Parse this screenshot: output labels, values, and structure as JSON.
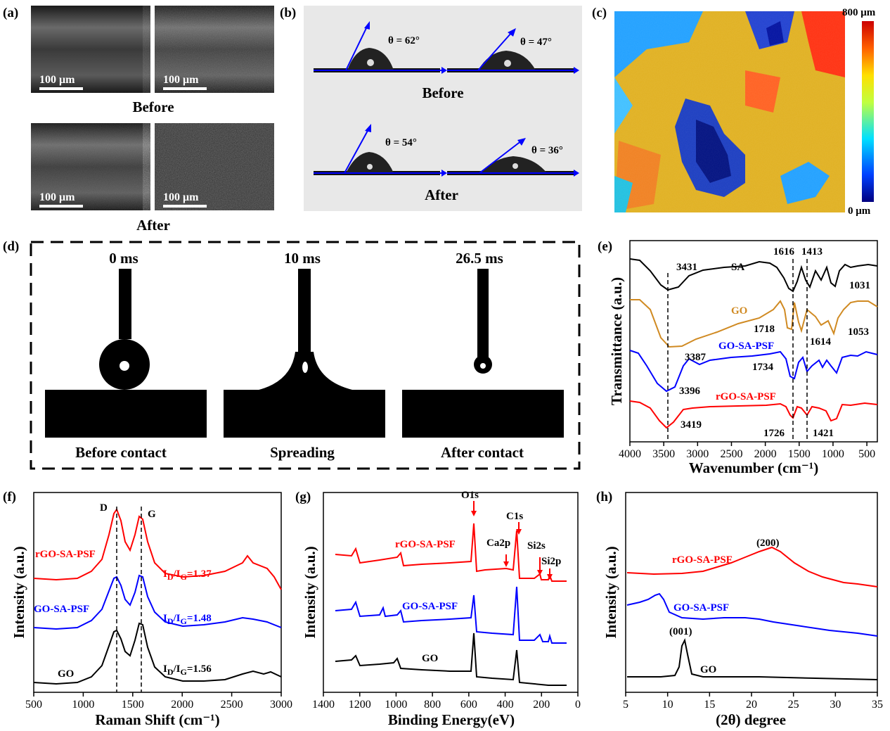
{
  "colors": {
    "red": "#ff0000",
    "blue": "#0000ff",
    "black": "#000000",
    "orange": "#d08a22",
    "bg_b": "#e8e8e8"
  },
  "panels": {
    "a": {
      "label": "(a)",
      "scale": "100 μm",
      "before": "Before",
      "after": "After"
    },
    "b": {
      "label": "(b)",
      "angles": [
        "θ = 62°",
        "θ = 47°",
        "θ = 54°",
        "θ = 36°"
      ],
      "before": "Before",
      "after": "After"
    },
    "c": {
      "label": "(c)",
      "cb_max": "800 μm",
      "cb_min": "0 μm"
    },
    "d": {
      "label": "(d)",
      "times": [
        "0 ms",
        "10 ms",
        "26.5 ms"
      ],
      "captions": [
        "Before contact",
        "Spreading",
        "After contact"
      ]
    }
  },
  "chart_data": [
    {
      "panel": "(e)",
      "type": "line",
      "xlabel": "Wavenumber (cm⁻¹)",
      "ylabel": "Transmittance (a.u.)",
      "xlim": [
        4000,
        400
      ],
      "xticks": [
        "4000",
        "3500",
        "3000",
        "2500",
        "2000",
        "1500",
        "1000",
        "500"
      ],
      "series": [
        {
          "name": "SA",
          "color": "#000000"
        },
        {
          "name": "GO",
          "color": "#d08a22"
        },
        {
          "name": "GO-SA-PSF",
          "color": "#0000ff"
        },
        {
          "name": "rGO-SA-PSF",
          "color": "#ff0000"
        }
      ],
      "annotations": [
        "3431",
        "1616",
        "1413",
        "1031",
        "1718",
        "1614",
        "1053",
        "3387",
        "1734",
        "3396",
        "3419",
        "1726",
        "1421"
      ]
    },
    {
      "panel": "(f)",
      "type": "line",
      "xlabel": "Raman Shift (cm⁻¹)",
      "ylabel": "Intensity (a.u.)",
      "xlim": [
        500,
        3000
      ],
      "xticks": [
        "500",
        "1000",
        "1500",
        "2000",
        "2500",
        "3000"
      ],
      "series": [
        {
          "name": "rGO-SA-PSF",
          "color": "#ff0000",
          "ratio": "1.37"
        },
        {
          "name": "GO-SA-PSF",
          "color": "#0000ff",
          "ratio": "1.48"
        },
        {
          "name": "GO",
          "color": "#000000",
          "ratio": "1.56"
        }
      ],
      "peaks": [
        "D",
        "G"
      ]
    },
    {
      "panel": "(g)",
      "type": "line",
      "xlabel": "Binding Energy(eV)",
      "ylabel": "Intensity (a.u.)",
      "xlim": [
        1400,
        0
      ],
      "xticks": [
        "1400",
        "1200",
        "1000",
        "800",
        "600",
        "400",
        "200",
        "0"
      ],
      "series": [
        {
          "name": "rGO-SA-PSF",
          "color": "#ff0000"
        },
        {
          "name": "GO-SA-PSF",
          "color": "#0000ff"
        },
        {
          "name": "GO",
          "color": "#000000"
        }
      ],
      "peaks": [
        "O1s",
        "C1s",
        "Ca2p",
        "Si2s",
        "Si2p"
      ]
    },
    {
      "panel": "(h)",
      "type": "line",
      "xlabel": "(2θ) degree",
      "ylabel": "Intensity (a.u.)",
      "xlim": [
        5,
        35
      ],
      "xticks": [
        "5",
        "10",
        "15",
        "20",
        "25",
        "30",
        "35"
      ],
      "series": [
        {
          "name": "rGO-SA-PSF",
          "color": "#ff0000",
          "peak": "(200)"
        },
        {
          "name": "GO-SA-PSF",
          "color": "#0000ff"
        },
        {
          "name": "GO",
          "color": "#000000",
          "peak": "(001)"
        }
      ]
    }
  ]
}
